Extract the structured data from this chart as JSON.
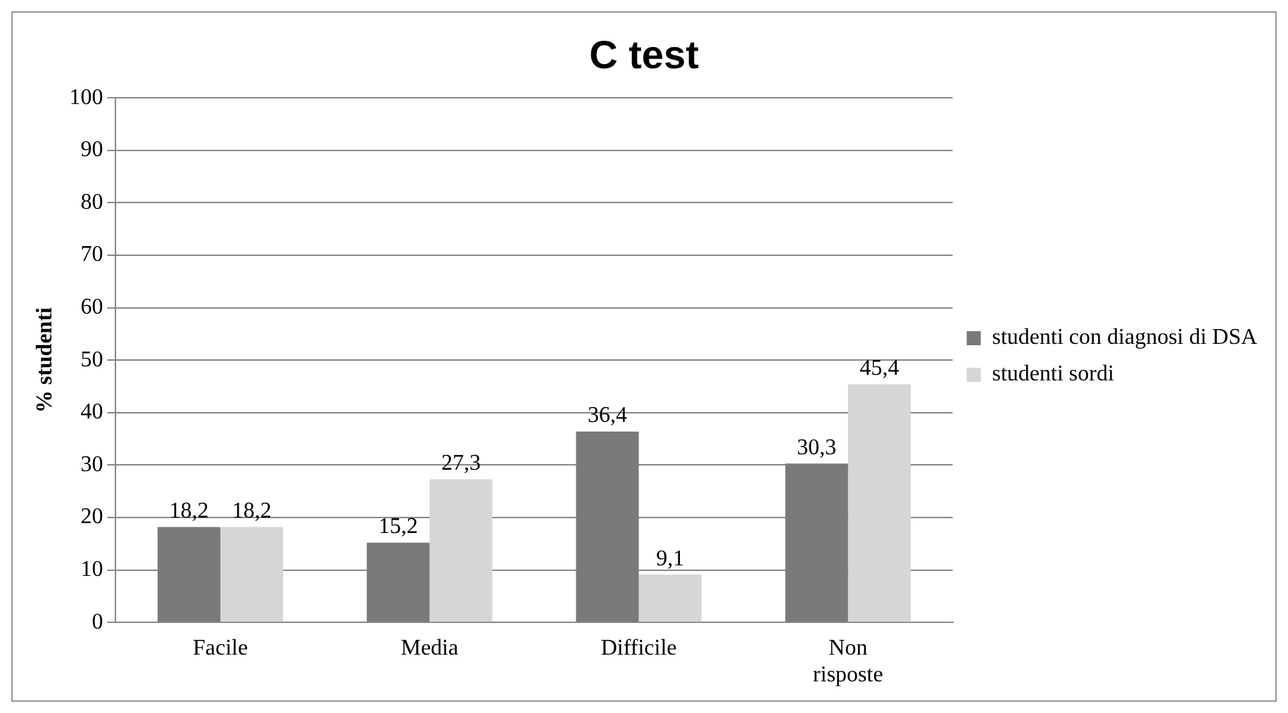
{
  "chart_data": {
    "type": "bar",
    "title": "C test",
    "ylabel": "% studenti",
    "categories": [
      "Facile",
      "Media",
      "Difficile",
      "Non risposte"
    ],
    "series": [
      {
        "name": "studenti con diagnosi di DSA",
        "color": "#7a7a7a",
        "values": [
          18.2,
          15.2,
          36.4,
          30.3
        ],
        "value_labels": [
          "18,2",
          "15,2",
          "36,4",
          "30,3"
        ]
      },
      {
        "name": "studenti sordi",
        "color": "#d6d6d6",
        "values": [
          18.2,
          27.3,
          9.1,
          45.4
        ],
        "value_labels": [
          "18,2",
          "27,3",
          "9,1",
          "45,4"
        ]
      }
    ],
    "ylim": [
      0,
      100
    ],
    "yticks": [
      0,
      10,
      20,
      30,
      40,
      50,
      60,
      70,
      80,
      90,
      100
    ],
    "grid": "y",
    "legend": "right"
  }
}
